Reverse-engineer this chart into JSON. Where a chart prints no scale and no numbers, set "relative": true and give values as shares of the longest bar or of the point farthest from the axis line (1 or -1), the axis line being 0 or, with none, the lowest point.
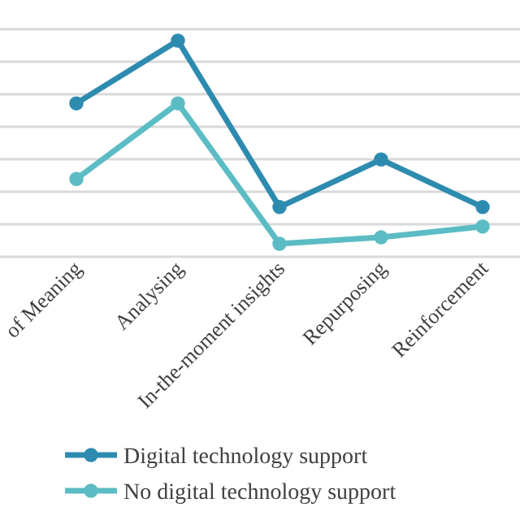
{
  "chart_data": {
    "type": "line",
    "relative": true,
    "categories": [
      "of Meaning",
      "Analysing",
      "In-the-moment insights",
      "Repurposing",
      "Reinforcement"
    ],
    "series": [
      {
        "name": "Digital technology support",
        "color": "#2e8bb0",
        "values": [
          0.71,
          1,
          0.23,
          0.45,
          0.23
        ]
      },
      {
        "name": "No digital technology support",
        "color": "#5bbcc4",
        "values": [
          0.36,
          0.71,
          0.06,
          0.09,
          0.14
        ]
      }
    ],
    "grid": true,
    "marker": "circle",
    "legend": "bottom"
  }
}
